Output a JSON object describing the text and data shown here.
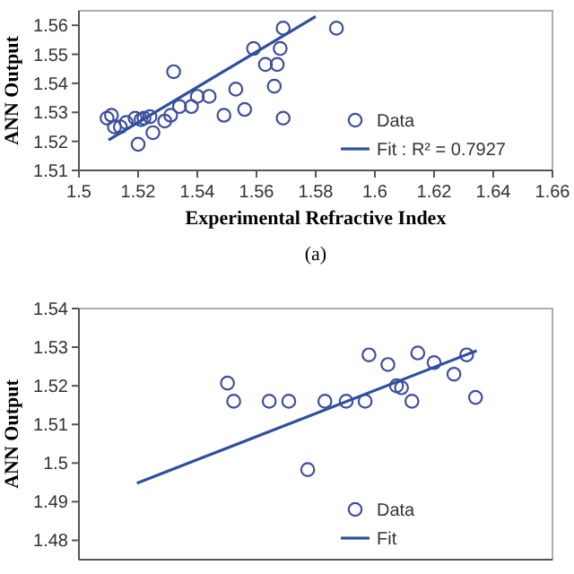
{
  "chart_data": [
    {
      "type": "scatter",
      "xlabel": "Experimental Refractive Index",
      "ylabel": "ANN Output",
      "annotations": [
        "(a)"
      ],
      "xlim": [
        1.5,
        1.66
      ],
      "xticks": [
        1.5,
        1.52,
        1.54,
        1.56,
        1.58,
        {
          "value": 1.6,
          "label": "1.6"
        },
        1.62,
        1.64,
        1.66
      ],
      "ylim": [
        1.51,
        1.565
      ],
      "yticks": [
        1.51,
        1.52,
        1.53,
        1.54,
        1.55,
        1.56
      ],
      "grid": false,
      "legend": "bottom right",
      "series": [
        {
          "name": "Data",
          "marker": "circle",
          "color": "#3f4f9a",
          "x": [
            1.5095,
            1.511,
            1.512,
            1.514,
            1.516,
            1.519,
            1.52,
            1.521,
            1.522,
            1.524,
            1.525,
            1.529,
            1.531,
            1.532,
            1.534,
            1.538,
            1.54,
            1.544,
            1.549,
            1.553,
            1.556,
            1.559,
            1.563,
            1.566,
            1.567,
            1.568,
            1.569,
            1.569,
            1.587
          ],
          "values": [
            1.528,
            1.529,
            1.525,
            1.525,
            1.5265,
            1.528,
            1.519,
            1.5275,
            1.528,
            1.5285,
            1.523,
            1.527,
            1.529,
            1.544,
            1.532,
            1.532,
            1.5355,
            1.5355,
            1.529,
            1.538,
            1.531,
            1.552,
            1.5465,
            1.539,
            1.5465,
            1.552,
            1.559,
            1.528,
            1.559
          ]
        },
        {
          "name": "Fit :  R² = 0.7927",
          "type": "line",
          "color": "#2f4f9f",
          "x": [
            1.51,
            1.58
          ],
          "values": [
            1.5205,
            1.563
          ]
        }
      ]
    },
    {
      "type": "scatter",
      "ylabel": "ANN Output",
      "xlim": [
        1.5,
        1.66
      ],
      "ylim": [
        1.475,
        1.54
      ],
      "yticks": [
        1.48,
        1.49,
        {
          "value": 1.5,
          "label": "1.5"
        },
        1.51,
        1.52,
        1.53,
        1.54
      ],
      "tick_labels": "y",
      "grid": false,
      "legend": "bottom right",
      "series": [
        {
          "name": "Data",
          "marker": "circle",
          "color": "#3f4f9a",
          "x": [
            1.5502,
            1.5523,
            1.5643,
            1.5709,
            1.5773,
            1.5831,
            1.5903,
            1.5967,
            1.598,
            1.6044,
            1.6073,
            1.609,
            1.6125,
            1.6145,
            1.62,
            1.6267,
            1.631,
            1.634
          ],
          "values": [
            1.5207,
            1.516,
            1.516,
            1.516,
            1.4983,
            1.516,
            1.516,
            1.516,
            1.528,
            1.5255,
            1.52,
            1.5195,
            1.516,
            1.5285,
            1.526,
            1.523,
            1.528,
            1.517
          ]
        },
        {
          "name": "Fit",
          "type": "line",
          "color": "#2f4f9f",
          "x": [
            1.5196,
            1.6344
          ],
          "values": [
            1.4948,
            1.5291
          ]
        }
      ]
    }
  ]
}
